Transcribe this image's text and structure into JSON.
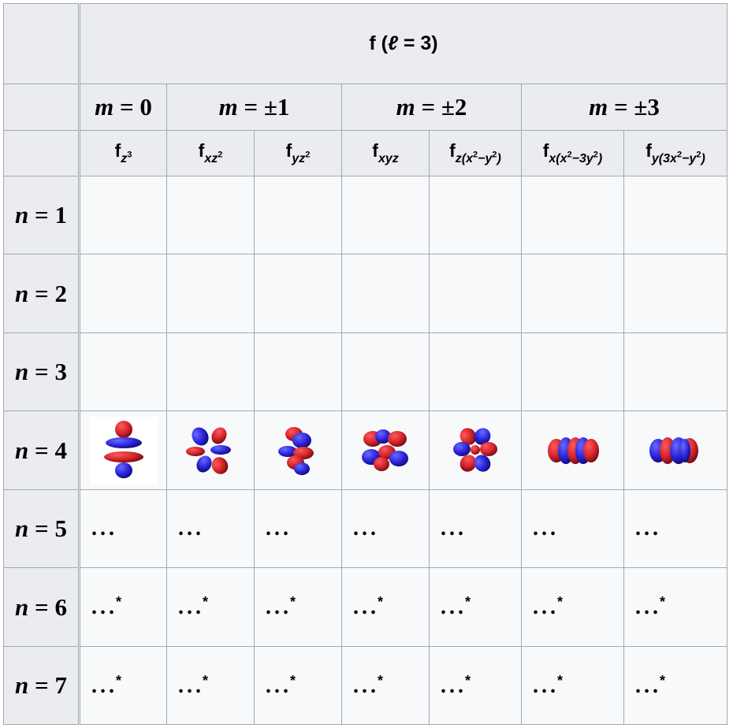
{
  "table": {
    "title": "f (ℓ = 3)",
    "title_prefix": "f (",
    "title_ell": "ℓ",
    "title_suffix": " = 3)",
    "m_groups": [
      {
        "var": "m",
        "rest": " = 0"
      },
      {
        "var": "m",
        "rest": " = ±1"
      },
      {
        "var": "m",
        "rest": " = ±2"
      },
      {
        "var": "m",
        "rest": " = ±3"
      }
    ],
    "orbitals": [
      {
        "f": "f",
        "sub": "z",
        "sup": "3",
        "sub_tail": ""
      },
      {
        "f": "f",
        "sub": "xz",
        "sup": "2",
        "sub_tail": ""
      },
      {
        "f": "f",
        "sub": "yz",
        "sup": "2",
        "sub_tail": ""
      },
      {
        "f": "f",
        "sub": "xyz",
        "sup": "",
        "sub_tail": ""
      },
      {
        "f": "f",
        "sub": "z(x",
        "sup": "2",
        "sub_tail": "−y",
        "sup2": "2",
        "tail2": ")"
      },
      {
        "f": "f",
        "sub": "x(x",
        "sup": "2",
        "sub_tail": "−3y",
        "sup2": "2",
        "tail2": ")"
      },
      {
        "f": "f",
        "sub": "y(3x",
        "sup": "2",
        "sub_tail": "−y",
        "sup2": "2",
        "tail2": ")"
      }
    ],
    "rows": [
      {
        "var": "n",
        "rest": " = 1"
      },
      {
        "var": "n",
        "rest": " = 2"
      },
      {
        "var": "n",
        "rest": " = 3"
      },
      {
        "var": "n",
        "rest": " = 4"
      },
      {
        "var": "n",
        "rest": " = 5"
      },
      {
        "var": "n",
        "rest": " = 6"
      },
      {
        "var": "n",
        "rest": " = 7"
      }
    ],
    "ellipsis": "...",
    "asterisk": "*",
    "orbital_images": [
      "fz3-lobes-icon",
      "fxz2-lobes-icon",
      "fyz2-lobes-icon",
      "fxyz-lobes-icon",
      "fzx2y2-lobes-icon",
      "fxx23y2-lobes-icon",
      "fy3x2y2-lobes-icon"
    ],
    "colors": {
      "positive_lobe": "#d0222a",
      "negative_lobe": "#2a22d8",
      "header_bg": "#eaecf0",
      "body_bg": "#f8f9fa",
      "border": "#a2a9b1"
    }
  }
}
